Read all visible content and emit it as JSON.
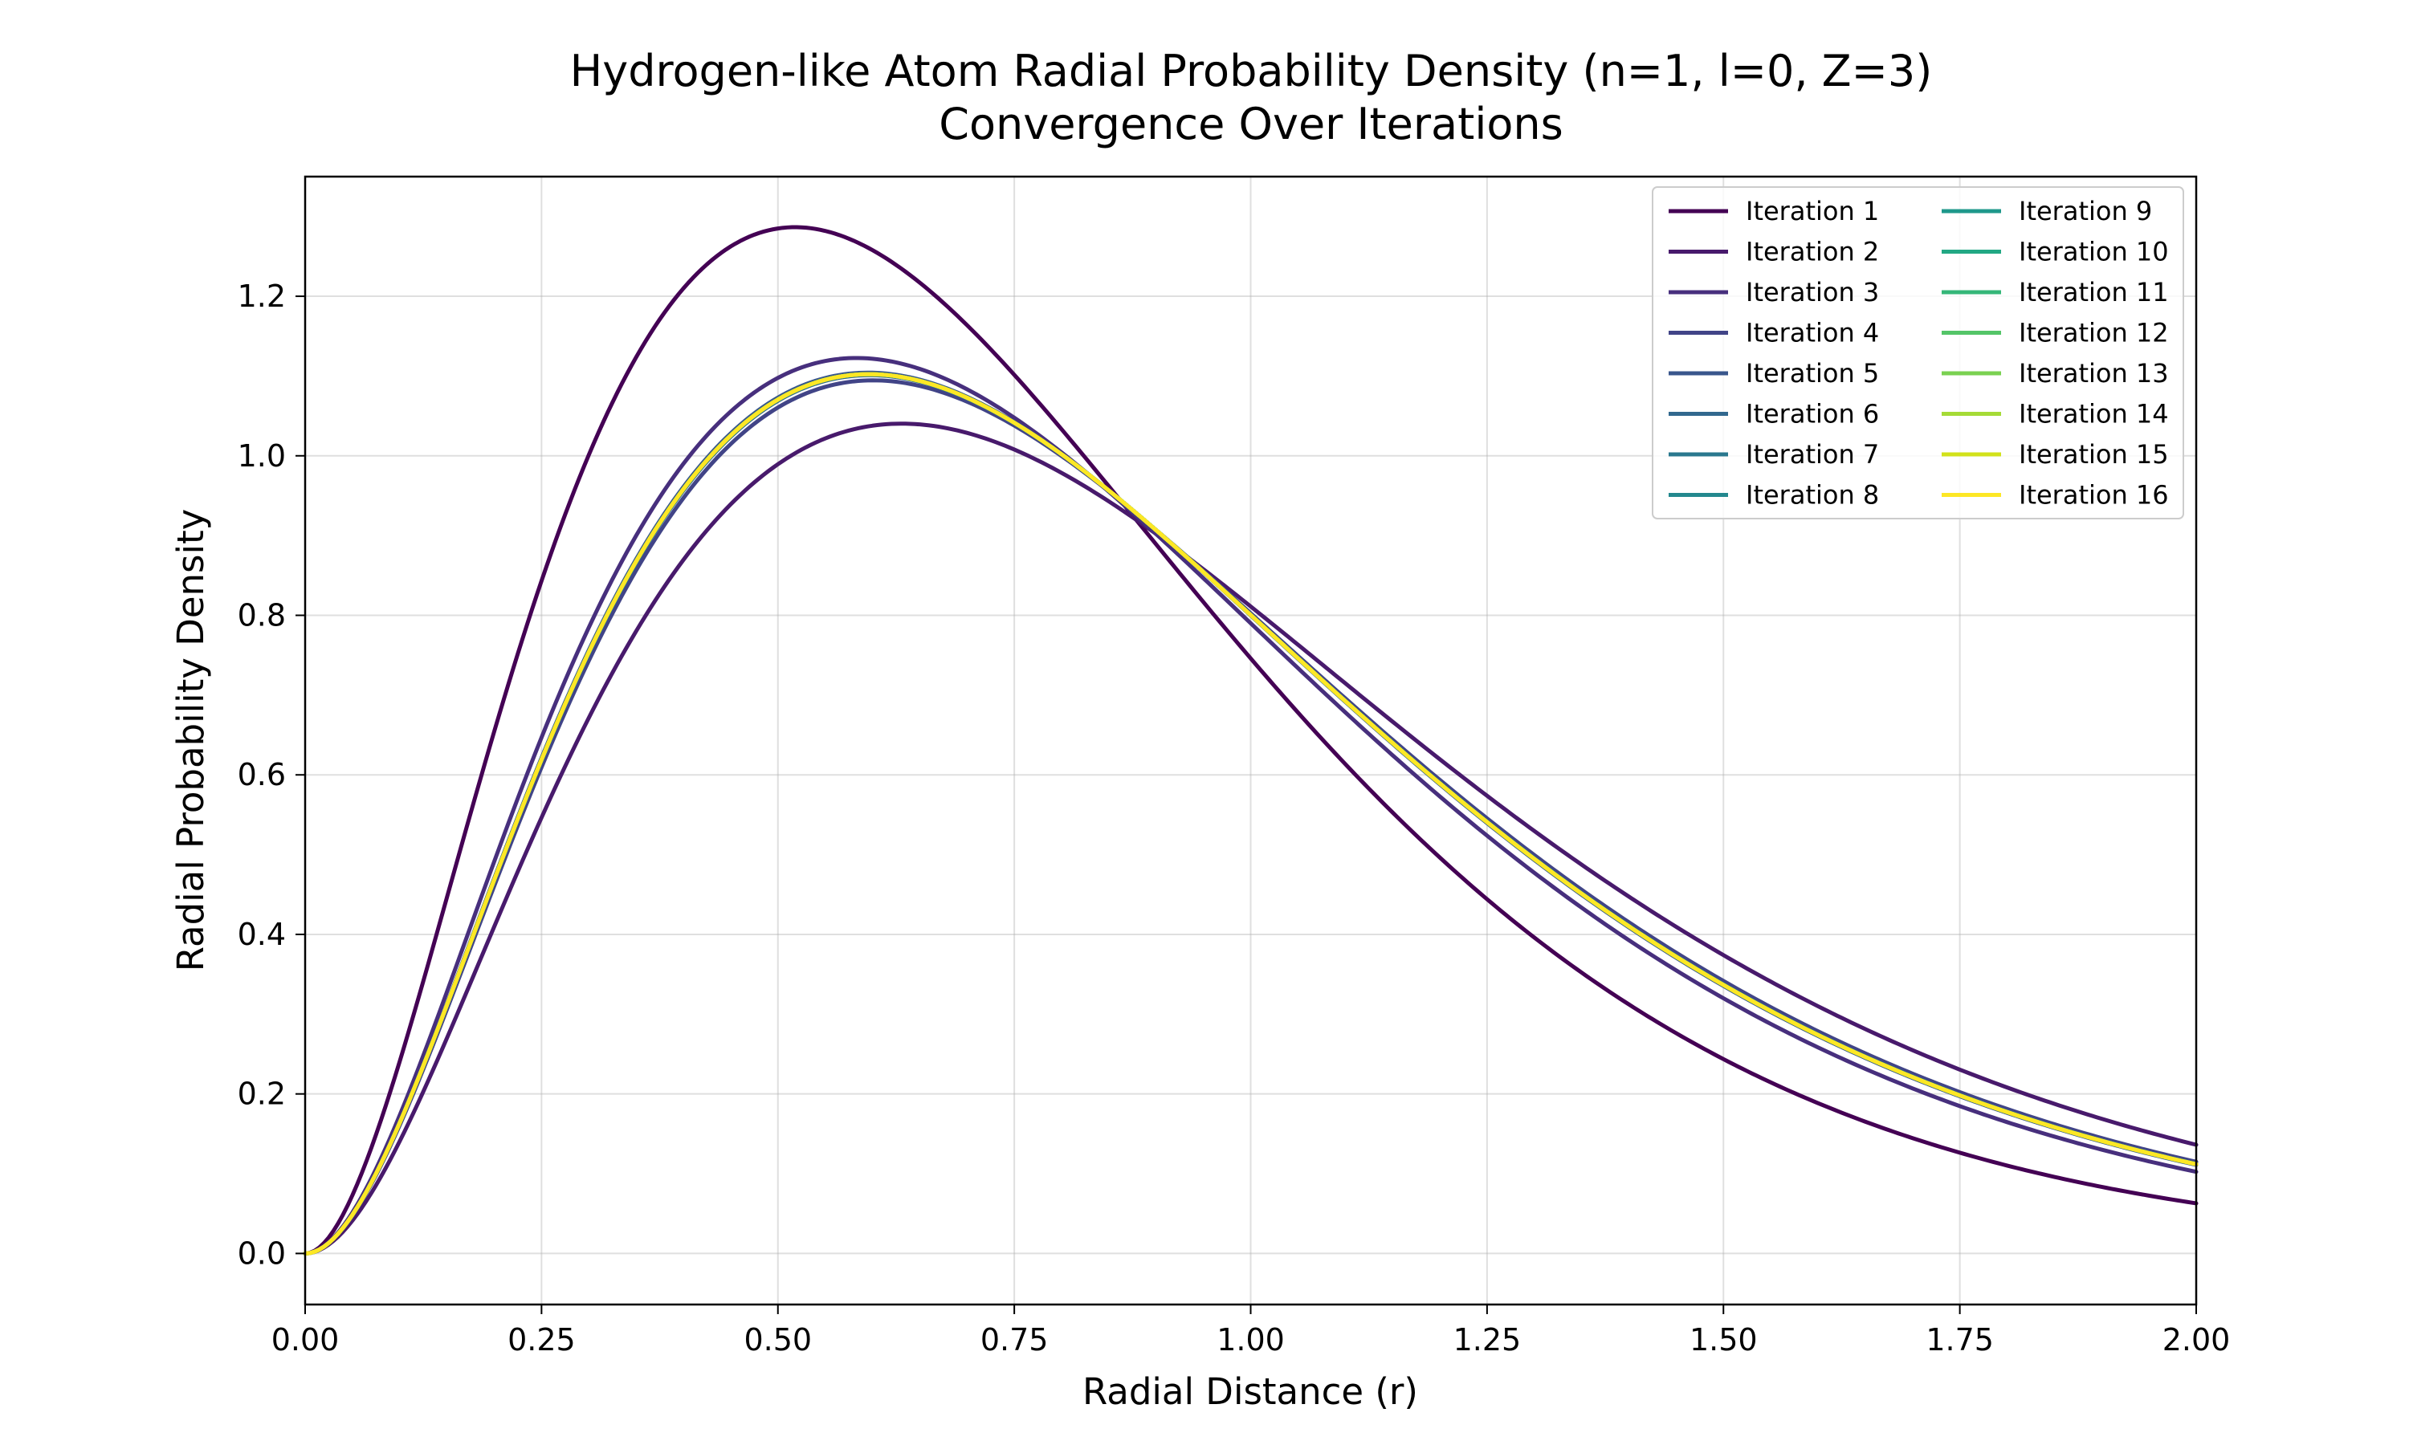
{
  "chart_data": {
    "type": "line",
    "title": "Hydrogen-like Atom Radial Probability Density (n=1, l=0, Z=3)",
    "subtitle": "Convergence Over Iterations",
    "xlabel": "Radial Distance (r)",
    "ylabel": "Radial Probability Density",
    "xlim": [
      0.0,
      2.0
    ],
    "ylim": [
      -0.064,
      1.35
    ],
    "x_ticks": [
      "0.00",
      "0.25",
      "0.50",
      "0.75",
      "1.00",
      "1.25",
      "1.50",
      "1.75",
      "2.00"
    ],
    "y_ticks": [
      "0.0",
      "0.2",
      "0.4",
      "0.6",
      "0.8",
      "1.0",
      "1.2"
    ],
    "grid": true,
    "legend_placement": "top-right",
    "legend_columns": 2,
    "x_range": [
      0.0,
      2.0
    ],
    "series": [
      {
        "name": "Iteration 1",
        "color": "#440154",
        "k": 3.86,
        "amplitude": 1.2866
      },
      {
        "name": "Iteration 2",
        "color": "#481a6c",
        "k": 3.17,
        "amplitude": 1.0403
      },
      {
        "name": "Iteration 3",
        "color": "#472f7d",
        "k": 3.43,
        "amplitude": 1.1226
      },
      {
        "name": "Iteration 4",
        "color": "#414487",
        "k": 3.33,
        "amplitude": 1.0946
      },
      {
        "name": "Iteration 5",
        "color": "#39568c",
        "k": 3.36,
        "amplitude": 1.1042
      },
      {
        "name": "Iteration 6",
        "color": "#31688e",
        "k": 3.35,
        "amplitude": 1.1011
      },
      {
        "name": "Iteration 7",
        "color": "#2a788e",
        "k": 3.355,
        "amplitude": 1.1026
      },
      {
        "name": "Iteration 8",
        "color": "#23888e",
        "k": 3.353,
        "amplitude": 1.102
      },
      {
        "name": "Iteration 9",
        "color": "#1f988b",
        "k": 3.354,
        "amplitude": 1.1023
      },
      {
        "name": "Iteration 10",
        "color": "#22a884",
        "k": 3.354,
        "amplitude": 1.1023
      },
      {
        "name": "Iteration 11",
        "color": "#35b779",
        "k": 3.354,
        "amplitude": 1.1023
      },
      {
        "name": "Iteration 12",
        "color": "#54c568",
        "k": 3.354,
        "amplitude": 1.1023
      },
      {
        "name": "Iteration 13",
        "color": "#7ad151",
        "k": 3.354,
        "amplitude": 1.1023
      },
      {
        "name": "Iteration 14",
        "color": "#a5db36",
        "k": 3.354,
        "amplitude": 1.1023
      },
      {
        "name": "Iteration 15",
        "color": "#d2e21b",
        "k": 3.354,
        "amplitude": 1.1023
      },
      {
        "name": "Iteration 16",
        "color": "#fde725",
        "k": 3.354,
        "amplitude": 1.1023
      }
    ]
  }
}
